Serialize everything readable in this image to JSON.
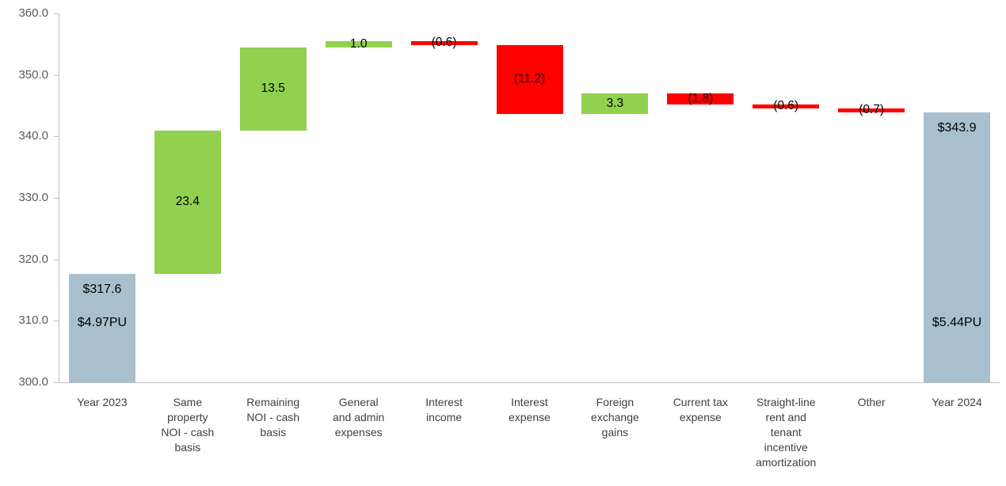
{
  "chart_data": {
    "type": "waterfall",
    "title": "",
    "xlabel": "",
    "ylabel": "",
    "ylim": [
      300,
      360
    ],
    "ytick_labels": [
      "360.0",
      "350.0",
      "340.0",
      "330.0",
      "320.0",
      "310.0",
      "300.0"
    ],
    "grid": false,
    "legend_position": "none",
    "colors": {
      "total_bar": "#a8c0cd",
      "increase_bar": "#92d050",
      "decrease_bar": "#ff0000",
      "axis_line": "#bfbfbf",
      "tick_text": "#595959",
      "category_text": "#404040",
      "bar_label_text": "#000000"
    },
    "bars": [
      {
        "category": "Year 2023",
        "category_lines": [
          "Year 2023"
        ],
        "kind": "total",
        "start": 300.0,
        "end": 317.6,
        "value": 317.6,
        "labels": [
          "$317.6",
          "$4.97PU"
        ]
      },
      {
        "category": "Same property NOI - cash basis",
        "category_lines": [
          "Same",
          "property",
          "NOI - cash",
          "basis"
        ],
        "kind": "increase",
        "start": 317.6,
        "end": 341.0,
        "value": 23.4,
        "labels": [
          "23.4"
        ]
      },
      {
        "category": "Remaining NOI - cash basis",
        "category_lines": [
          "Remaining",
          "NOI - cash",
          "basis"
        ],
        "kind": "increase",
        "start": 341.0,
        "end": 354.5,
        "value": 13.5,
        "labels": [
          "13.5"
        ]
      },
      {
        "category": "General and admin expenses",
        "category_lines": [
          "General",
          "and admin",
          "expenses"
        ],
        "kind": "increase",
        "start": 354.5,
        "end": 355.5,
        "value": 1.0,
        "labels": [
          "1.0"
        ]
      },
      {
        "category": "Interest income",
        "category_lines": [
          "Interest",
          "income"
        ],
        "kind": "decrease",
        "start": 355.5,
        "end": 354.9,
        "value": -0.6,
        "labels": [
          "(0.6)"
        ]
      },
      {
        "category": "Interest expense",
        "category_lines": [
          "Interest",
          "expense"
        ],
        "kind": "decrease",
        "start": 354.9,
        "end": 343.7,
        "value": -11.2,
        "labels": [
          "(11.2)"
        ]
      },
      {
        "category": "Foreign exchange gains",
        "category_lines": [
          "Foreign",
          "exchange",
          "gains"
        ],
        "kind": "increase",
        "start": 343.7,
        "end": 347.0,
        "value": 3.3,
        "labels": [
          "3.3"
        ]
      },
      {
        "category": "Current tax expense",
        "category_lines": [
          "Current tax",
          "expense"
        ],
        "kind": "decrease",
        "start": 347.0,
        "end": 345.2,
        "value": -1.8,
        "labels": [
          "(1.8)"
        ]
      },
      {
        "category": "Straight-line rent and tenant incentive amortization",
        "category_lines": [
          "Straight-line",
          "rent and",
          "tenant",
          "incentive",
          "amortization"
        ],
        "kind": "decrease",
        "start": 345.2,
        "end": 344.6,
        "value": -0.6,
        "labels": [
          "(0.6)"
        ]
      },
      {
        "category": "Other",
        "category_lines": [
          "Other"
        ],
        "kind": "decrease",
        "start": 344.6,
        "end": 343.9,
        "value": -0.7,
        "labels": [
          "(0.7)"
        ]
      },
      {
        "category": "Year 2024",
        "category_lines": [
          "Year 2024"
        ],
        "kind": "total",
        "start": 300.0,
        "end": 343.9,
        "value": 343.9,
        "labels": [
          "$343.9",
          "$5.44PU"
        ]
      }
    ]
  }
}
